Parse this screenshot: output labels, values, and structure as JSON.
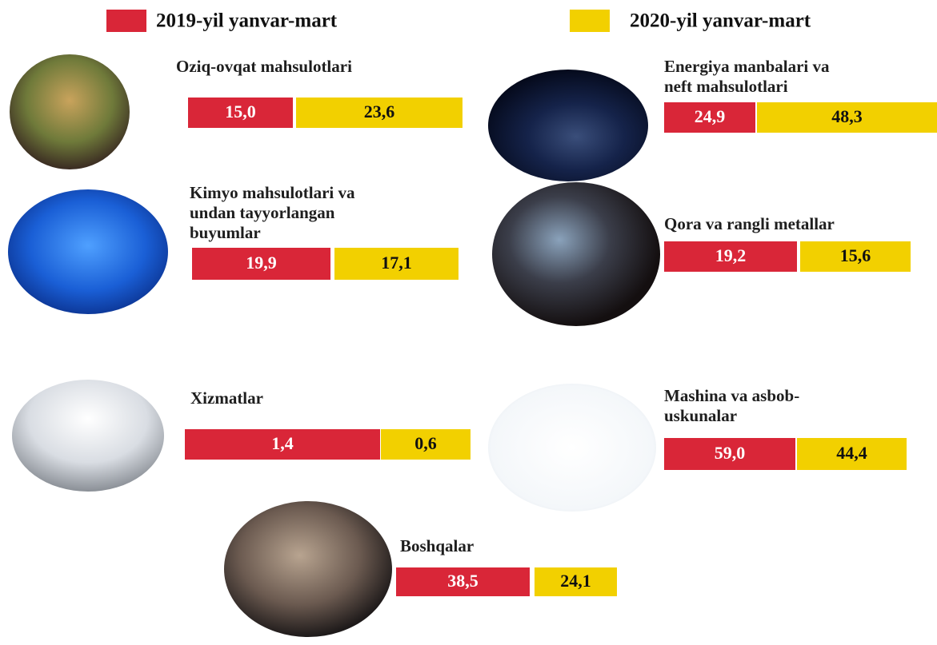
{
  "legend": [
    {
      "label": "2019-yil yanvar-mart",
      "color": "#d92638"
    },
    {
      "label": "2020-yil yanvar-mart",
      "color": "#f2d000"
    }
  ],
  "items": [
    {
      "label": [
        "Oziq-ovqat mahsulotlari"
      ],
      "values": [
        "15,0",
        "23,6"
      ]
    },
    {
      "label": [
        "Energiya manbalari va",
        "neft mahsulotlari"
      ],
      "values": [
        "24,9",
        "48,3"
      ]
    },
    {
      "label": [
        "Kimyo mahsulotlari va",
        "undan tayyorlangan",
        "buyumlar"
      ],
      "values": [
        "19,9",
        "17,1"
      ]
    },
    {
      "label": [
        "Qora va rangli metallar"
      ],
      "values": [
        "19,2",
        "15,6"
      ]
    },
    {
      "label": [
        "Xizmatlar"
      ],
      "values": [
        "1,4",
        "0,6"
      ]
    },
    {
      "label": [
        "Mashina va asbob-",
        "uskunalar"
      ],
      "values": [
        "59,0",
        "44,4"
      ]
    },
    {
      "label": [
        "Boshqalar"
      ],
      "values": [
        "38,5",
        "24,1"
      ]
    }
  ]
}
